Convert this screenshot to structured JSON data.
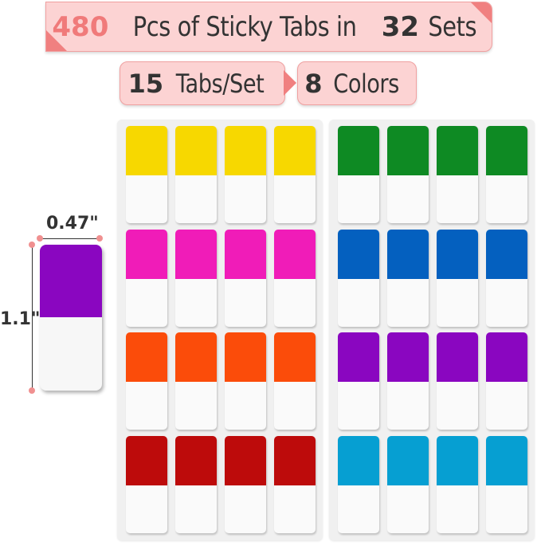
{
  "headline": {
    "count": "480",
    "middle": "Pcs of Sticky Tabs in",
    "sets": "32",
    "end": "Sets"
  },
  "badges": [
    {
      "number": "15",
      "label": "Tabs/Set"
    },
    {
      "number": "8",
      "label": "Colors"
    }
  ],
  "dimensions": {
    "width": "0.47\"",
    "height": "1.1\""
  },
  "sample_tab_color": "#8a06c0",
  "sheets": [
    {
      "rows": [
        "#f7d800",
        "#f01cb8",
        "#fb4c0a",
        "#bd0b0b"
      ]
    },
    {
      "rows": [
        "#0e8a23",
        "#0460bf",
        "#8a06c0",
        "#069fd2"
      ]
    }
  ],
  "accent": "#f08080"
}
